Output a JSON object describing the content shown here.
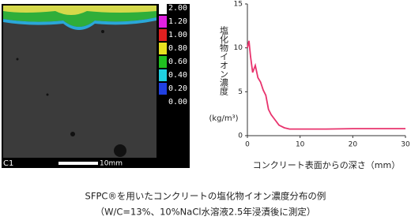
{
  "chart_data": {
    "type": "line",
    "ylabel": "塩化物イオン濃度",
    "yunit": "(kg/m³)",
    "xlabel": "コンクリート表面からの深さ（mm）",
    "x": [
      0,
      0.3,
      0.6,
      1,
      1.5,
      2,
      2.5,
      3,
      3.5,
      4,
      4.5,
      5,
      6,
      7,
      8,
      10,
      15,
      20,
      25,
      30
    ],
    "values": [
      10,
      10.8,
      9,
      7.2,
      8,
      6.6,
      6.1,
      5.2,
      4.6,
      3,
      2.4,
      2,
      1.2,
      0.9,
      0.75,
      0.75,
      0.75,
      0.8,
      0.8,
      0.8
    ],
    "color": "#e8336d",
    "xlim": [
      0,
      30
    ],
    "xticks": [
      0,
      10,
      20,
      30
    ],
    "ylim": [
      0,
      15
    ],
    "yticks": [
      0,
      5,
      10,
      15
    ]
  },
  "map": {
    "colorbar_labels": [
      "2.00",
      "1.20",
      "1.00",
      "0.80",
      "0.60",
      "0.40",
      "0.20",
      "0.00"
    ],
    "label": "C1",
    "scale": "10mm"
  },
  "caption": [
    "SFPC®を用いたコンクリートの塩化物イオン濃度分布の例",
    "（W/C=13%、10%NaCl水溶液2.5年浸漬後に測定）"
  ]
}
